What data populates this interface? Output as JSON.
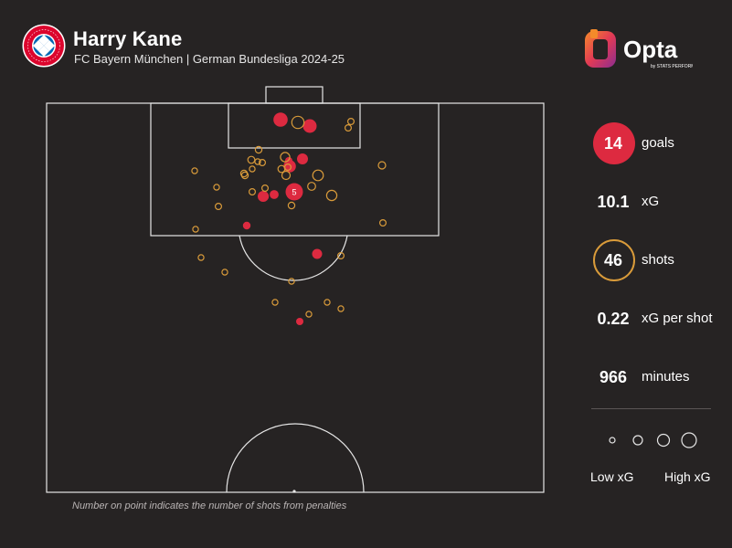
{
  "header": {
    "player_name": "Harry Kane",
    "subtitle": "FC Bayern München | German Bundesliga 2024-25"
  },
  "logos": {
    "club_crest": "FC BAYERN MÜNCHEN",
    "brand": "Opta",
    "brand_sub": "by STATS PERFORM"
  },
  "stats": {
    "goals": {
      "value": "14",
      "label": "goals"
    },
    "xg": {
      "value": "10.1",
      "label": "xG"
    },
    "shots": {
      "value": "46",
      "label": "shots"
    },
    "xg_per_shot": {
      "value": "0.22",
      "label": "xG per shot"
    },
    "minutes": {
      "value": "966",
      "label": "minutes"
    }
  },
  "legend": {
    "low": "Low xG",
    "high": "High xG"
  },
  "note": "Number on point indicates the number of shots from penalties",
  "colors": {
    "background": "#262323",
    "goal": "#dd2a40",
    "shot": "#d99b3a",
    "lines": "#e6e6e6"
  },
  "shots": [
    {
      "outcome": "goal",
      "xg": 0.45
    },
    {
      "outcome": "goal",
      "xg": 0.4
    },
    {
      "outcome": "goal",
      "xg": 0.3
    },
    {
      "outcome": "goal",
      "xg": 0.2
    },
    {
      "outcome": "goal",
      "xg": 0.2
    },
    {
      "outcome": "goal",
      "xg": 0.15
    },
    {
      "outcome": "goal",
      "xg": 0.12
    },
    {
      "outcome": "goal",
      "xg": 0.1
    },
    {
      "outcome": "goal",
      "xg": 0.05
    },
    {
      "outcome": "goal",
      "xg": 0.04
    },
    {
      "outcome": "goal",
      "xg": 0.04
    },
    {
      "outcome": "penalty_goal",
      "xg": 0.79,
      "penalty_count": "5"
    },
    {
      "outcome": "shot",
      "xg": 0.35
    },
    {
      "outcome": "shot",
      "xg": 0.22
    },
    {
      "outcome": "shot",
      "xg": 0.2
    },
    {
      "outcome": "shot",
      "xg": 0.15
    },
    {
      "outcome": "shot",
      "xg": 0.1
    },
    {
      "outcome": "shot",
      "xg": 0.08
    },
    {
      "outcome": "shot",
      "xg": 0.06
    },
    {
      "outcome": "shot",
      "xg": 0.05
    },
    {
      "outcome": "shot",
      "xg": 0.05
    },
    {
      "outcome": "shot",
      "xg": 0.04
    },
    {
      "outcome": "shot",
      "xg": 0.04
    },
    {
      "outcome": "shot",
      "xg": 0.04
    },
    {
      "outcome": "shot",
      "xg": 0.04
    },
    {
      "outcome": "shot",
      "xg": 0.03
    },
    {
      "outcome": "shot",
      "xg": 0.03
    },
    {
      "outcome": "shot",
      "xg": 0.03
    },
    {
      "outcome": "shot",
      "xg": 0.03
    },
    {
      "outcome": "shot",
      "xg": 0.03
    },
    {
      "outcome": "shot",
      "xg": 0.03
    },
    {
      "outcome": "shot",
      "xg": 0.03
    },
    {
      "outcome": "shot",
      "xg": 0.03
    },
    {
      "outcome": "shot",
      "xg": 0.03
    },
    {
      "outcome": "shot",
      "xg": 0.02
    },
    {
      "outcome": "shot",
      "xg": 0.02
    },
    {
      "outcome": "shot",
      "xg": 0.02
    },
    {
      "outcome": "shot",
      "xg": 0.02
    },
    {
      "outcome": "shot",
      "xg": 0.02
    },
    {
      "outcome": "shot",
      "xg": 0.02
    },
    {
      "outcome": "shot",
      "xg": 0.02
    },
    {
      "outcome": "shot",
      "xg": 0.02
    },
    {
      "outcome": "shot",
      "xg": 0.02
    },
    {
      "outcome": "shot",
      "xg": 0.02
    },
    {
      "outcome": "shot",
      "xg": 0.02
    },
    {
      "outcome": "shot",
      "xg": 0.02
    }
  ]
}
